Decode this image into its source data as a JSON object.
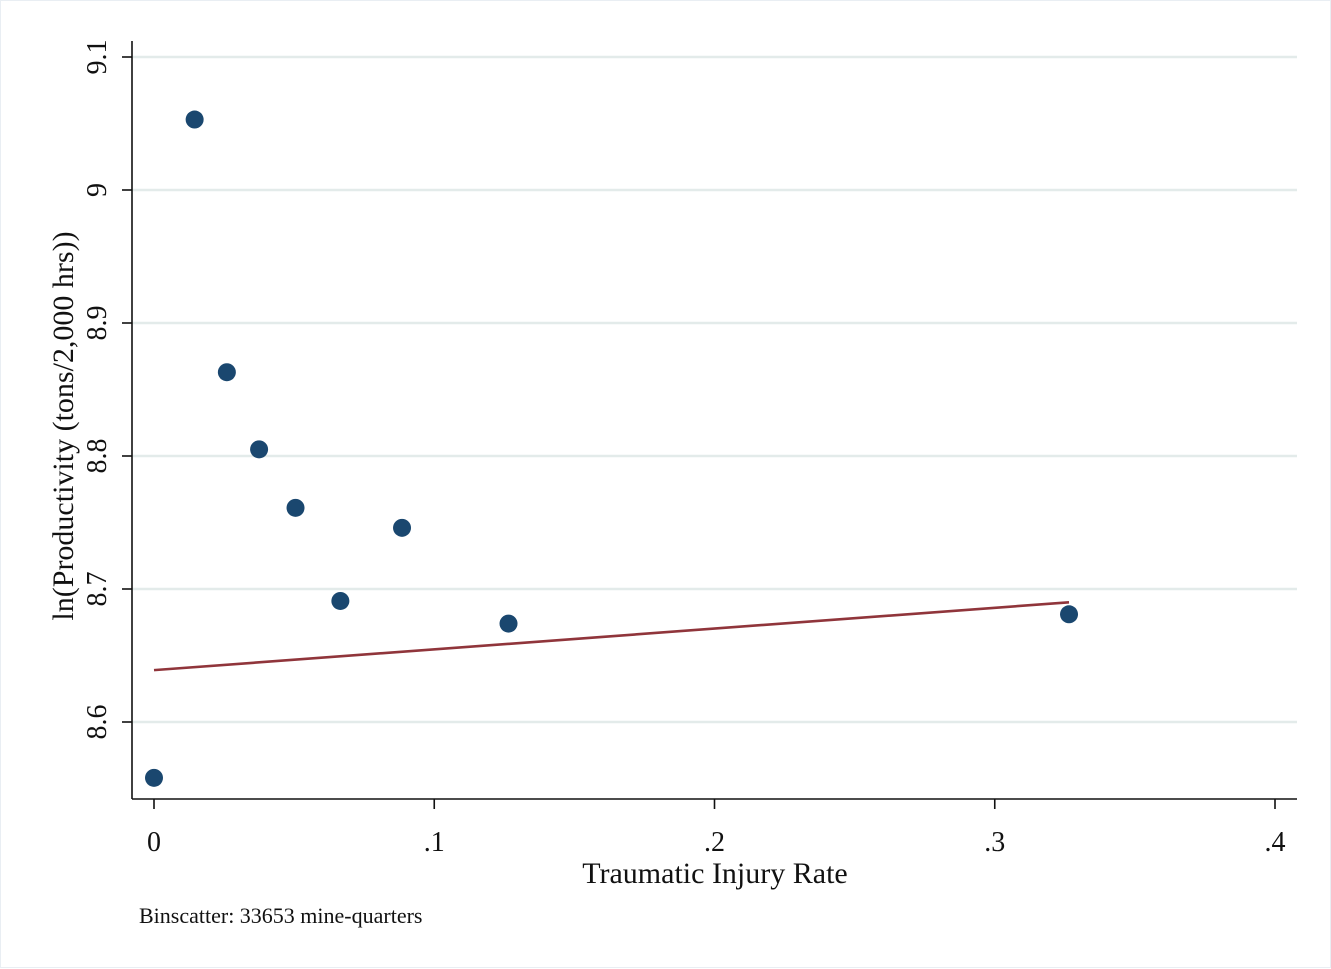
{
  "chart_data": {
    "type": "scatter",
    "title": "",
    "xlabel": "Traumatic Injury Rate",
    "ylabel": "ln(Productivity (tons/2,000 hrs))",
    "note": "Binscatter: 33653 mine-quarters",
    "xlim": [
      0,
      0.4
    ],
    "ylim": [
      8.56,
      9.1
    ],
    "grid": true,
    "x_ticks": [
      {
        "value": 0,
        "label": "0"
      },
      {
        "value": 0.1,
        "label": ".1"
      },
      {
        "value": 0.2,
        "label": ".2"
      },
      {
        "value": 0.3,
        "label": ".3"
      },
      {
        "value": 0.4,
        "label": ".4"
      }
    ],
    "y_ticks": [
      {
        "value": 8.6,
        "label": "8.6"
      },
      {
        "value": 8.7,
        "label": "8.7"
      },
      {
        "value": 8.8,
        "label": "8.8"
      },
      {
        "value": 8.9,
        "label": "8.9"
      },
      {
        "value": 9.0,
        "label": "9"
      },
      {
        "value": 9.1,
        "label": "9.1"
      }
    ],
    "points": {
      "x": [
        0.0,
        0.0145,
        0.026,
        0.0375,
        0.0505,
        0.0665,
        0.0885,
        0.1265,
        0.3265
      ],
      "y": [
        8.558,
        9.053,
        8.863,
        8.805,
        8.761,
        8.691,
        8.746,
        8.674,
        8.681
      ],
      "color": "#1a476f"
    },
    "fit_line": {
      "x": [
        0.0,
        0.3265
      ],
      "y": [
        8.639,
        8.69
      ],
      "color": "#90353b"
    },
    "colors": {
      "grid": "#e3ebea",
      "axis": "#111111"
    }
  }
}
